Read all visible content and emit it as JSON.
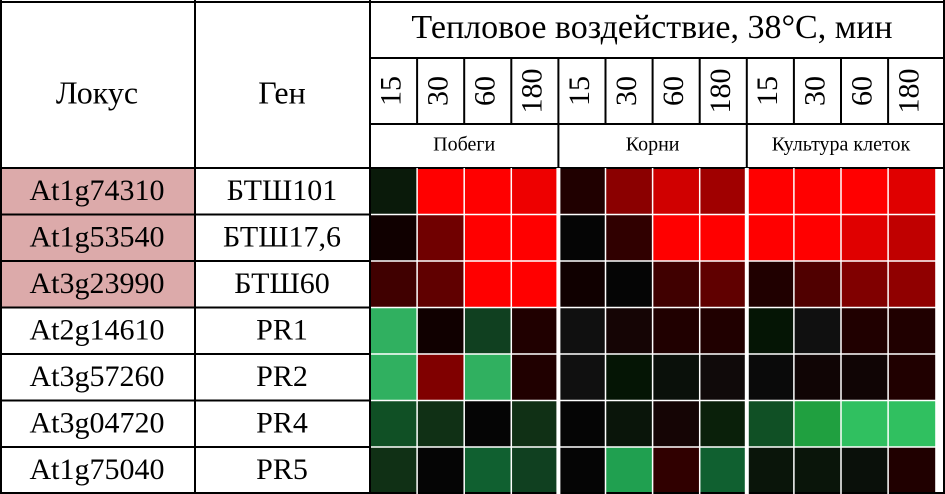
{
  "header": {
    "locus": "Локус",
    "gene": "Ген",
    "title": "Тепловое воздействие, 38°С, мин",
    "times": [
      "15",
      "30",
      "60",
      "180",
      "15",
      "30",
      "60",
      "180",
      "15",
      "30",
      "60",
      "180"
    ],
    "tissues": [
      "Побеги",
      "Корни",
      "Культура клеток"
    ]
  },
  "table": {
    "rows": [
      {
        "locus": "At1g74310",
        "gene": "БТШ101",
        "highlight": "#dcaaaa",
        "colors": [
          "#0a1a0a",
          "#ff0000",
          "#ff0000",
          "#ee0000",
          "#200000",
          "#8b0000",
          "#d00000",
          "#a00000",
          "#ff0000",
          "#ff0000",
          "#ff0000",
          "#e00000"
        ]
      },
      {
        "locus": "At1g53540",
        "gene": "БТШ17,6",
        "highlight": "#dcaaaa",
        "colors": [
          "#100000",
          "#700000",
          "#ff0000",
          "#ff0000",
          "#050505",
          "#300000",
          "#ff0000",
          "#ff0000",
          "#ff0000",
          "#ff0000",
          "#e00000",
          "#c00000"
        ]
      },
      {
        "locus": "At3g23990",
        "gene": "БТШ60",
        "highlight": "#dcaaaa",
        "colors": [
          "#400000",
          "#600000",
          "#ff0000",
          "#ff0000",
          "#100000",
          "#050505",
          "#400000",
          "#600000",
          "#200000",
          "#500000",
          "#800000",
          "#900000"
        ]
      },
      {
        "locus": "At2g14610",
        "gene": "PR1",
        "colors": [
          "#30b060",
          "#100000",
          "#104020",
          "#200000",
          "#101010",
          "#150505",
          "#200000",
          "#200000",
          "#051505",
          "#101010",
          "#200000",
          "#200000"
        ]
      },
      {
        "locus": "At3g57260",
        "gene": "PR2",
        "colors": [
          "#30b060",
          "#800000",
          "#30b060",
          "#200000",
          "#101010",
          "#051505",
          "#0a100a",
          "#100a0a",
          "#0a0a0a",
          "#100505",
          "#100505",
          "#200000"
        ]
      },
      {
        "locus": "At3g04720",
        "gene": "PR4",
        "colors": [
          "#105025",
          "#103015",
          "#050505",
          "#103015",
          "#050505",
          "#0a150a",
          "#150505",
          "#0a200a",
          "#105025",
          "#20a040",
          "#30c060",
          "#30c060"
        ]
      },
      {
        "locus": "At1g75040",
        "gene": "PR5",
        "colors": [
          "#103015",
          "#050505",
          "#106030",
          "#104020",
          "#050505",
          "#20a050",
          "#300000",
          "#106030",
          "#0a150a",
          "#0a150a",
          "#0a100a",
          "#200000"
        ]
      }
    ]
  }
}
